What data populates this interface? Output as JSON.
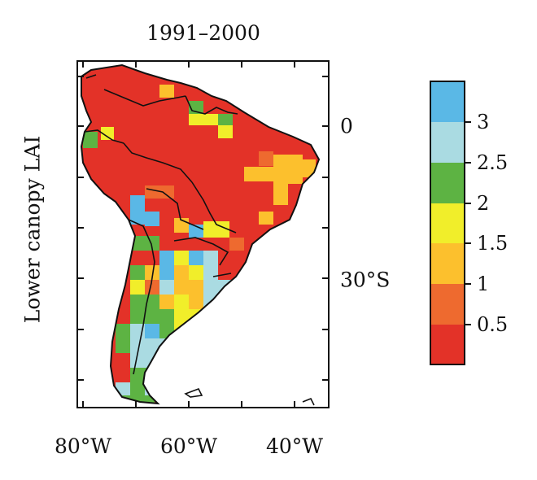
{
  "title": "1991–2000",
  "ylabel": "Lower canopy LAI",
  "xticks": [
    "80°W",
    "60°W",
    "40°W"
  ],
  "yticks": [
    "0",
    "30°S"
  ],
  "colorbar": {
    "labels": [
      "3",
      "2.5",
      "2",
      "1.5",
      "1",
      "0.5"
    ],
    "colors": [
      "#5ab8e6",
      "#aadbe2",
      "#5db343",
      "#f1ee2a",
      "#fcc02d",
      "#ee6a2f",
      "#e33228"
    ]
  },
  "map": {
    "region": "South America",
    "variable": "Lower canopy LAI",
    "period": "1991–2000",
    "lon_range": [
      -83,
      -34
    ],
    "lat_range": [
      13,
      -57
    ]
  }
}
